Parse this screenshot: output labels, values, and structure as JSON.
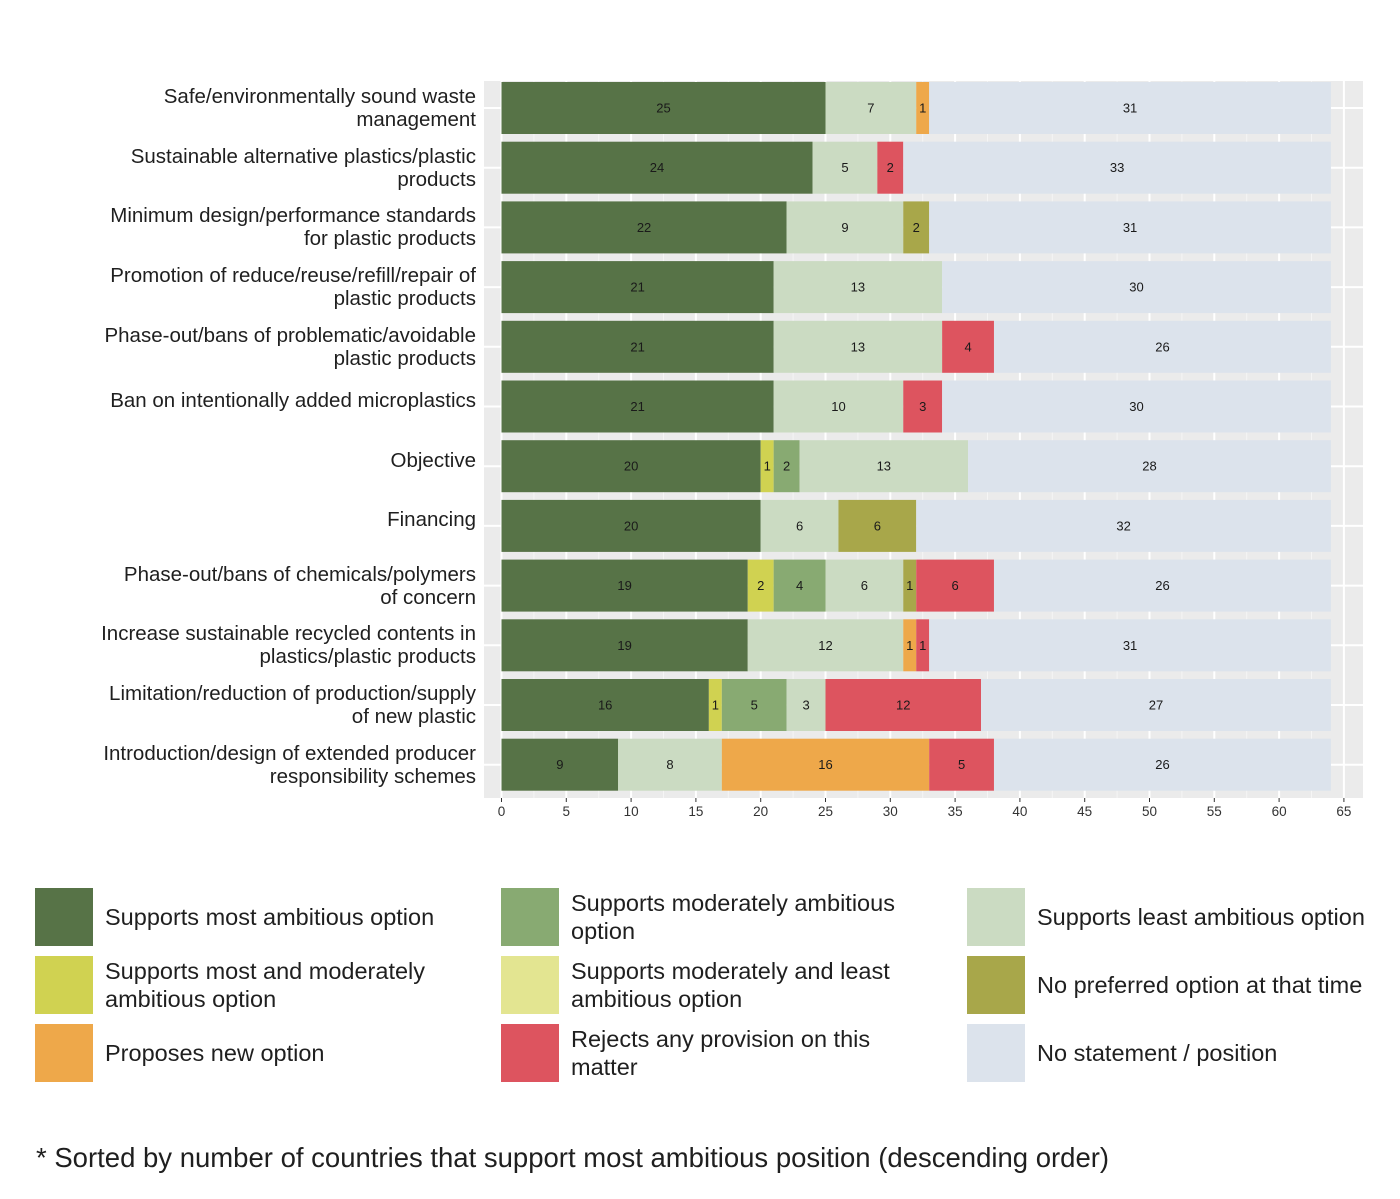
{
  "chart_data": {
    "type": "bar",
    "orientation": "horizontal",
    "stacked": true,
    "title": "",
    "xlabel": "",
    "ylabel": "",
    "xlim": [
      0,
      65
    ],
    "x_ticks": [
      0,
      5,
      10,
      15,
      20,
      25,
      30,
      35,
      40,
      45,
      50,
      55,
      60,
      65
    ],
    "grid": true,
    "legend_position": "bottom",
    "categories": [
      "Safe/environmentally sound waste\nmanagement",
      "Sustainable alternative plastics/plastic\nproducts",
      "Minimum design/performance standards\nfor plastic products",
      "Promotion of reduce/reuse/refill/repair of\nplastic products",
      "Phase-out/bans of problematic/avoidable\nplastic products",
      "Ban on intentionally added microplastics",
      "Objective",
      "Financing",
      "Phase-out/bans of chemicals/polymers\nof concern",
      "Increase sustainable recycled contents in\nplastics/plastic products",
      "Limitation/reduction of production/supply\nof new plastic",
      "Introduction/design of extended producer\nresponsibility schemes"
    ],
    "series": [
      {
        "name": "Supports most ambitious option",
        "color": "#577347",
        "values": [
          25,
          24,
          22,
          21,
          21,
          21,
          20,
          20,
          19,
          19,
          16,
          9
        ]
      },
      {
        "name": "Supports most and moderately ambitious option",
        "color": "#d0d251",
        "values": [
          0,
          0,
          0,
          0,
          0,
          0,
          1,
          0,
          2,
          0,
          1,
          0
        ]
      },
      {
        "name": "Supports moderately ambitious option",
        "color": "#88aa72",
        "values": [
          0,
          0,
          0,
          0,
          0,
          0,
          2,
          0,
          4,
          0,
          5,
          0
        ]
      },
      {
        "name": "Supports moderately and least ambitious option",
        "color": "#e3e591",
        "values": [
          0,
          0,
          0,
          0,
          0,
          0,
          0,
          0,
          0,
          0,
          0,
          0
        ]
      },
      {
        "name": "Supports least ambitious option",
        "color": "#cbdbc2",
        "values": [
          7,
          5,
          9,
          13,
          13,
          10,
          13,
          6,
          6,
          12,
          3,
          8
        ]
      },
      {
        "name": "No preferred option at that time",
        "color": "#a8a74a",
        "values": [
          0,
          0,
          2,
          0,
          0,
          0,
          0,
          6,
          1,
          0,
          0,
          0
        ]
      },
      {
        "name": "Proposes new option",
        "color": "#eea84a",
        "values": [
          1,
          0,
          0,
          0,
          0,
          0,
          0,
          0,
          0,
          1,
          0,
          16
        ]
      },
      {
        "name": "Rejects any provision on this matter",
        "color": "#dd545f",
        "values": [
          0,
          2,
          0,
          0,
          4,
          3,
          0,
          0,
          6,
          1,
          12,
          5
        ]
      },
      {
        "name": "No statement / position",
        "color": "#dce3ec",
        "values": [
          31,
          33,
          31,
          30,
          26,
          30,
          28,
          32,
          26,
          31,
          27,
          26
        ]
      }
    ]
  },
  "legend": {
    "items": [
      {
        "label": "Supports most ambitious option",
        "color": "#577347"
      },
      {
        "label": "Supports moderately ambitious option",
        "color": "#88aa72"
      },
      {
        "label": "Supports least ambitious option",
        "color": "#cbdbc2"
      },
      {
        "label": "Supports most and moderately ambitious option",
        "color": "#d0d251"
      },
      {
        "label": "Supports moderately and least ambitious option",
        "color": "#e3e591"
      },
      {
        "label": "No preferred option at that time",
        "color": "#a8a74a"
      },
      {
        "label": "Proposes new option",
        "color": "#eea84a"
      },
      {
        "label": "Rejects any provision on this matter",
        "color": "#dd545f"
      },
      {
        "label": "No statement / position",
        "color": "#dce3ec"
      }
    ]
  },
  "footnote": "* Sorted by number of countries that support most ambitious position (descending order)"
}
